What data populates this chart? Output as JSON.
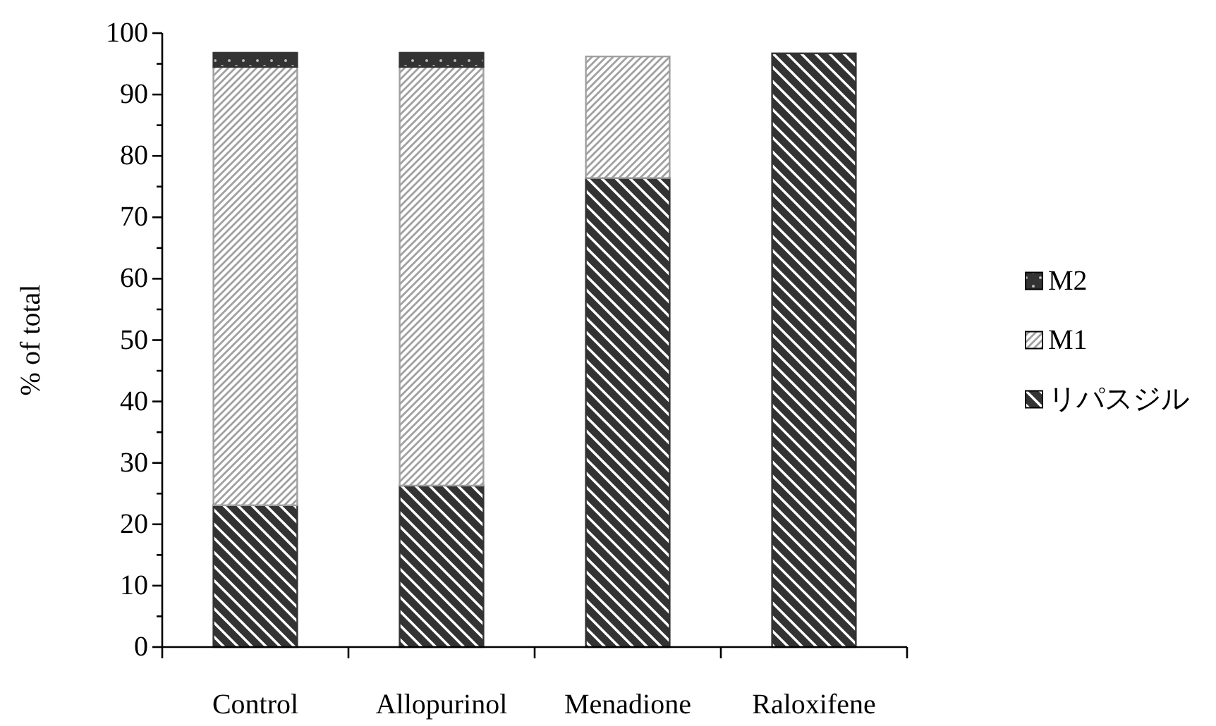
{
  "chart_data": {
    "type": "bar",
    "stacked": true,
    "ylabel": "% of total",
    "categories": [
      "Control",
      "Allopurinol",
      "Menadione",
      "Raloxifene"
    ],
    "series": [
      {
        "name": "リパスジル",
        "color": "#333333",
        "values": [
          23.1,
          26.3,
          76.4,
          96.7
        ]
      },
      {
        "name": "M1",
        "color": "#a0a0a0",
        "values": [
          71.4,
          68.2,
          19.8,
          0
        ]
      },
      {
        "name": "M2",
        "color": "#333333",
        "values": [
          2.3,
          2.3,
          0,
          0
        ]
      }
    ],
    "ylim": [
      0,
      100
    ],
    "yticks": [
      0,
      {
        "value": 5,
        "label": null
      },
      10,
      {
        "value": 15,
        "label": null
      },
      20,
      {
        "value": 25,
        "label": null
      },
      30,
      {
        "value": 35,
        "label": null
      },
      40,
      {
        "value": 45,
        "label": null
      },
      50,
      {
        "value": 55,
        "label": null
      },
      60,
      {
        "value": 65,
        "label": null
      },
      70,
      {
        "value": 75,
        "label": null
      },
      80,
      {
        "value": 85,
        "label": null
      },
      90,
      {
        "value": 95,
        "label": null
      },
      100
    ],
    "grid": false,
    "legend": "right"
  }
}
